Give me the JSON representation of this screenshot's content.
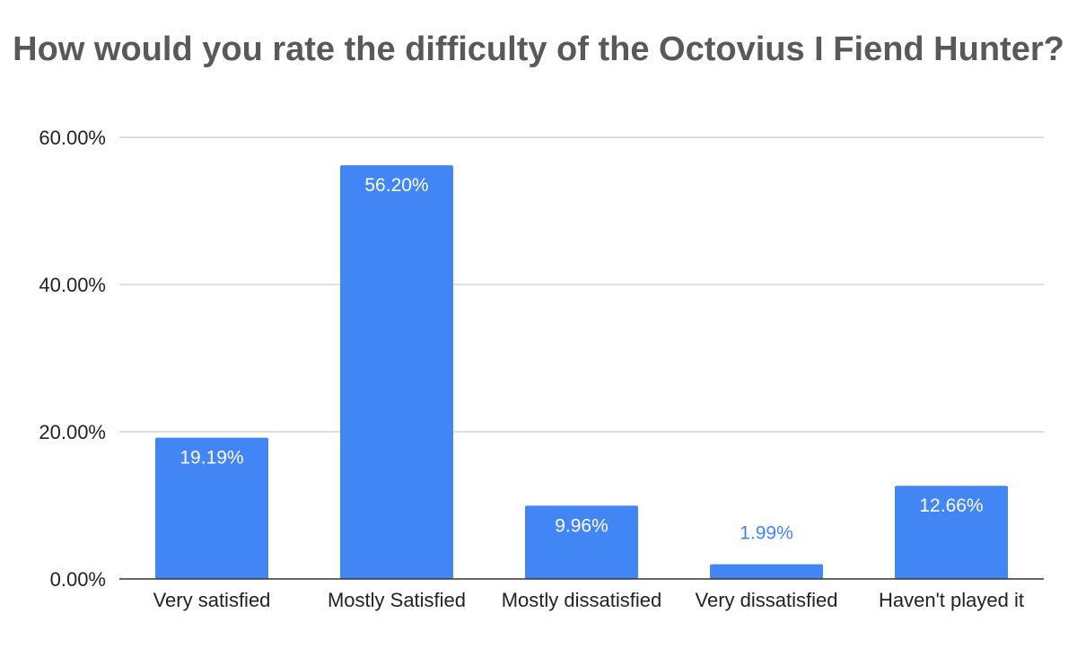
{
  "chart_data": {
    "type": "bar",
    "title": "How would you rate the difficulty of the Octovius I Fiend Hunter?",
    "xlabel": "",
    "ylabel": "",
    "categories": [
      "Very satisfied",
      "Mostly Satisfied",
      "Mostly dissatisfied",
      "Very dissatisfied",
      "Haven't played it"
    ],
    "values": [
      19.19,
      56.2,
      9.96,
      1.99,
      12.66
    ],
    "data_labels": [
      "19.19%",
      "56.20%",
      "9.96%",
      "1.99%",
      "12.66%"
    ],
    "y_ticks": [
      0,
      20,
      40,
      60
    ],
    "y_tick_labels": [
      "0.00%",
      "20.00%",
      "40.00%",
      "60.00%"
    ],
    "ylim": [
      0,
      60
    ],
    "grid": true,
    "legend": "none",
    "bar_color": "#4285f4",
    "label_inside_color": "#ffffff",
    "label_outside_color": "#4285f4"
  }
}
